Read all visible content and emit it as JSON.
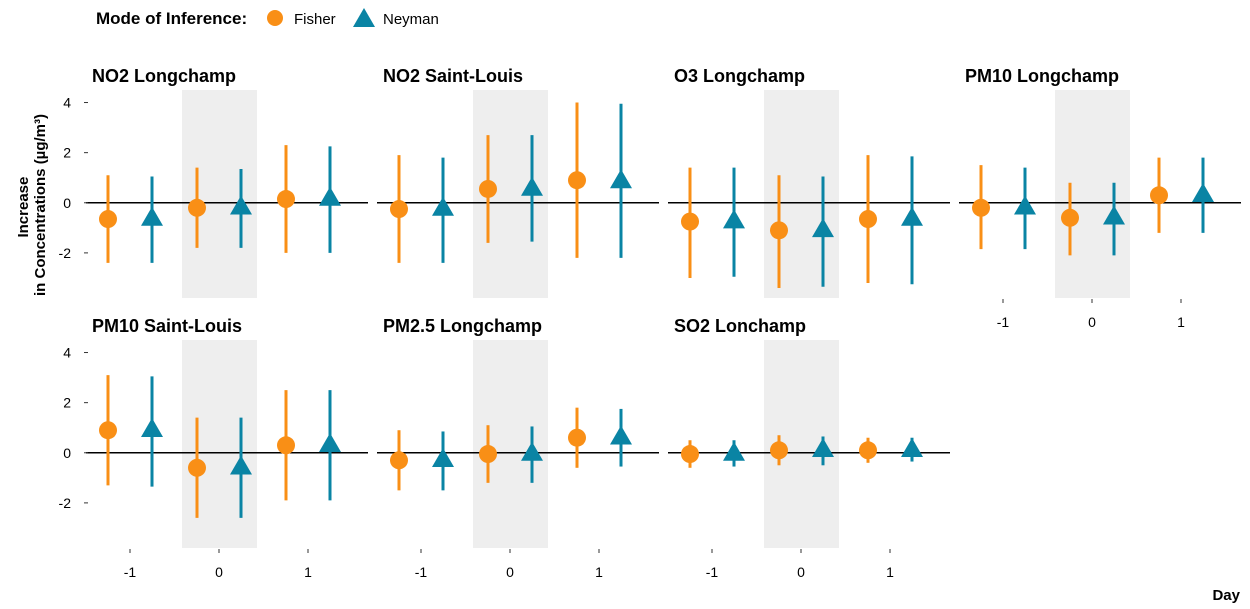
{
  "legend": {
    "title": "Mode of Inference:",
    "fisher_label": "Fisher",
    "neyman_label": "Neyman"
  },
  "colors": {
    "fisher": "#f98f16",
    "neyman": "#0a84a4",
    "shade": "#eeeeee",
    "zero_line": "#000000"
  },
  "axis": {
    "ylabel_line1": "Increase",
    "ylabel_line2": "in Concentrations (µg/m³)",
    "xlabel": "Day"
  },
  "chart_data": {
    "type": "scatter",
    "x_ticks": [
      -1,
      0,
      1
    ],
    "y_ticks": [
      4,
      2,
      0,
      -2
    ],
    "y_tick_labels": [
      "4",
      "2",
      "0",
      "-2"
    ],
    "ylim": [
      -3.8,
      4.5
    ],
    "shaded_day": 0,
    "panels": [
      {
        "title": "NO2 Longchamp",
        "fisher": [
          {
            "day": -1,
            "est": -0.65,
            "lo": -2.4,
            "hi": 1.1
          },
          {
            "day": 0,
            "est": -0.2,
            "lo": -1.8,
            "hi": 1.4
          },
          {
            "day": 1,
            "est": 0.15,
            "lo": -2.0,
            "hi": 2.3
          }
        ],
        "neyman": [
          {
            "day": -1,
            "est": -0.6,
            "lo": -2.4,
            "hi": 1.05
          },
          {
            "day": 0,
            "est": -0.15,
            "lo": -1.8,
            "hi": 1.35
          },
          {
            "day": 1,
            "est": 0.2,
            "lo": -2.0,
            "hi": 2.25
          }
        ]
      },
      {
        "title": "NO2 Saint-Louis",
        "fisher": [
          {
            "day": -1,
            "est": -0.25,
            "lo": -2.4,
            "hi": 1.9
          },
          {
            "day": 0,
            "est": 0.55,
            "lo": -1.6,
            "hi": 2.7
          },
          {
            "day": 1,
            "est": 0.9,
            "lo": -2.2,
            "hi": 4.0
          }
        ],
        "neyman": [
          {
            "day": -1,
            "est": -0.2,
            "lo": -2.4,
            "hi": 1.8
          },
          {
            "day": 0,
            "est": 0.6,
            "lo": -1.55,
            "hi": 2.7
          },
          {
            "day": 1,
            "est": 0.9,
            "lo": -2.2,
            "hi": 3.95
          }
        ]
      },
      {
        "title": "O3 Longchamp",
        "fisher": [
          {
            "day": -1,
            "est": -0.75,
            "lo": -3.0,
            "hi": 1.4
          },
          {
            "day": 0,
            "est": -1.1,
            "lo": -3.4,
            "hi": 1.1
          },
          {
            "day": 1,
            "est": -0.65,
            "lo": -3.2,
            "hi": 1.9
          }
        ],
        "neyman": [
          {
            "day": -1,
            "est": -0.7,
            "lo": -2.95,
            "hi": 1.4
          },
          {
            "day": 0,
            "est": -1.05,
            "lo": -3.35,
            "hi": 1.05
          },
          {
            "day": 1,
            "est": -0.6,
            "lo": -3.25,
            "hi": 1.85
          }
        ]
      },
      {
        "title": "PM10 Longchamp",
        "fisher": [
          {
            "day": -1,
            "est": -0.2,
            "lo": -1.85,
            "hi": 1.5
          },
          {
            "day": 0,
            "est": -0.6,
            "lo": -2.1,
            "hi": 0.8
          },
          {
            "day": 1,
            "est": 0.3,
            "lo": -1.2,
            "hi": 1.8
          }
        ],
        "neyman": [
          {
            "day": -1,
            "est": -0.15,
            "lo": -1.85,
            "hi": 1.4
          },
          {
            "day": 0,
            "est": -0.55,
            "lo": -2.1,
            "hi": 0.8
          },
          {
            "day": 1,
            "est": 0.35,
            "lo": -1.2,
            "hi": 1.8
          }
        ]
      },
      {
        "title": "PM10 Saint-Louis",
        "fisher": [
          {
            "day": -1,
            "est": 0.9,
            "lo": -1.3,
            "hi": 3.1
          },
          {
            "day": 0,
            "est": -0.6,
            "lo": -2.6,
            "hi": 1.4
          },
          {
            "day": 1,
            "est": 0.3,
            "lo": -1.9,
            "hi": 2.5
          }
        ],
        "neyman": [
          {
            "day": -1,
            "est": 0.95,
            "lo": -1.35,
            "hi": 3.05
          },
          {
            "day": 0,
            "est": -0.55,
            "lo": -2.6,
            "hi": 1.4
          },
          {
            "day": 1,
            "est": 0.35,
            "lo": -1.9,
            "hi": 2.5
          }
        ]
      },
      {
        "title": "PM2.5 Longchamp",
        "fisher": [
          {
            "day": -1,
            "est": -0.3,
            "lo": -1.5,
            "hi": 0.9
          },
          {
            "day": 0,
            "est": -0.05,
            "lo": -1.2,
            "hi": 1.1
          },
          {
            "day": 1,
            "est": 0.6,
            "lo": -0.6,
            "hi": 1.8
          }
        ],
        "neyman": [
          {
            "day": -1,
            "est": -0.25,
            "lo": -1.5,
            "hi": 0.85
          },
          {
            "day": 0,
            "est": 0.0,
            "lo": -1.2,
            "hi": 1.05
          },
          {
            "day": 1,
            "est": 0.65,
            "lo": -0.55,
            "hi": 1.75
          }
        ]
      },
      {
        "title": "SO2 Lonchamp",
        "fisher": [
          {
            "day": -1,
            "est": -0.05,
            "lo": -0.6,
            "hi": 0.5
          },
          {
            "day": 0,
            "est": 0.1,
            "lo": -0.5,
            "hi": 0.7
          },
          {
            "day": 1,
            "est": 0.1,
            "lo": -0.4,
            "hi": 0.6
          }
        ],
        "neyman": [
          {
            "day": -1,
            "est": 0.0,
            "lo": -0.55,
            "hi": 0.5
          },
          {
            "day": 0,
            "est": 0.15,
            "lo": -0.5,
            "hi": 0.65
          },
          {
            "day": 1,
            "est": 0.15,
            "lo": -0.35,
            "hi": 0.6
          }
        ]
      }
    ]
  }
}
